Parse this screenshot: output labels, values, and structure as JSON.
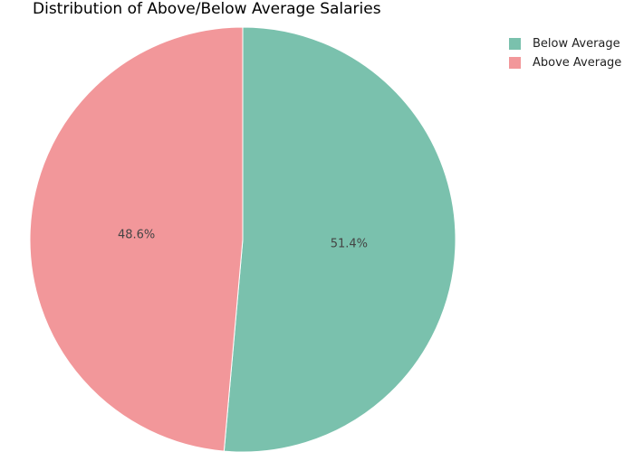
{
  "chart_data": {
    "type": "pie",
    "title": "Distribution of Above/Below Average Salaries",
    "categories": [
      "Below Average",
      "Above Average"
    ],
    "values": [
      51.4,
      48.6
    ],
    "labels": [
      "51.4%",
      "48.6%"
    ],
    "colors": [
      "#7ac1ad",
      "#f2979a"
    ],
    "start_angle_deg": 90,
    "direction": "clockwise",
    "legend_position": "top-right"
  }
}
